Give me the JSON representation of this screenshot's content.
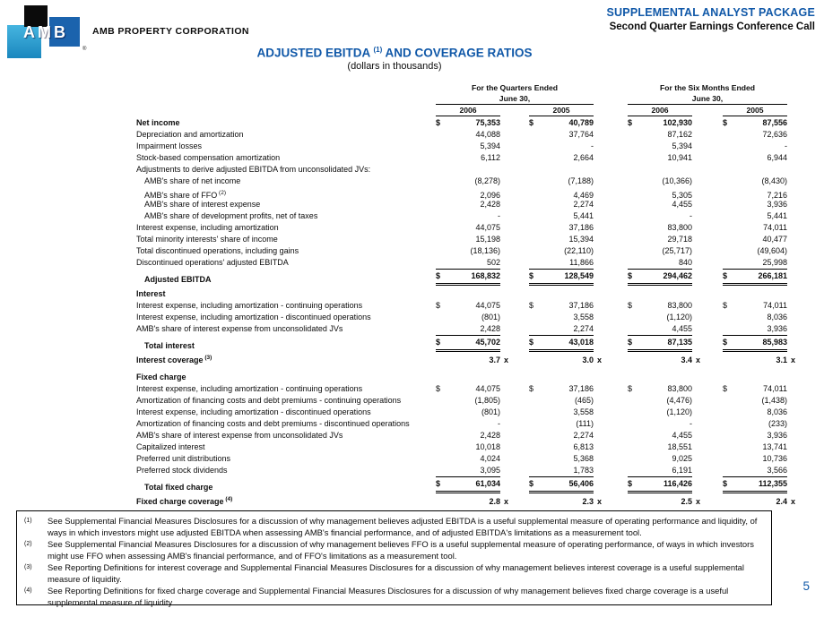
{
  "page": {
    "logo": {
      "text": "AMB",
      "registered": "®",
      "company": "AMB PROPERTY CORPORATION"
    },
    "header_right": {
      "line1": "SUPPLEMENTAL ANALYST PACKAGE",
      "line2": "Second Quarter Earnings Conference Call"
    },
    "title": {
      "pre": "ADJUSTED EBITDA",
      "sup": "(1)",
      "post": "AND COVERAGE RATIOS",
      "subtitle": "(dollars in thousands)"
    },
    "page_number": "5",
    "colors": {
      "accent_blue": "#1058a8",
      "logo_blue": "#1b63ad",
      "logo_cyan": "#2fa7d8",
      "logo_black": "#0b0b0b"
    }
  },
  "table": {
    "col_groups": [
      {
        "title": "For the Quarters Ended",
        "subtitle": "June 30,",
        "years": [
          "2006",
          "2005"
        ]
      },
      {
        "title": "For the Six Months Ended",
        "subtitle": "June 30,",
        "years": [
          "2006",
          "2005"
        ]
      }
    ],
    "sections": [
      {
        "header": "",
        "rows": [
          {
            "label": "Net income",
            "bold": true,
            "dollar": true,
            "values": [
              "75,353",
              "40,789",
              "102,930",
              "87,556"
            ]
          },
          {
            "label": "Depreciation and amortization",
            "values": [
              "44,088",
              "37,764",
              "87,162",
              "72,636"
            ]
          },
          {
            "label": "Impairment losses",
            "values": [
              "5,394",
              "-",
              "5,394",
              "-"
            ]
          },
          {
            "label": "Stock-based compensation amortization",
            "values": [
              "6,112",
              "2,664",
              "10,941",
              "6,944"
            ]
          },
          {
            "label": "Adjustments to derive adjusted EBITDA from unconsolidated JVs:",
            "values": [
              "",
              "",
              "",
              ""
            ]
          },
          {
            "label": "AMB's share of net income",
            "indent": 1,
            "values": [
              "(8,278)",
              "(7,188)",
              "(10,366)",
              "(8,430)"
            ]
          },
          {
            "label": "AMB's share of FFO",
            "sup": "(2)",
            "indent": 1,
            "values": [
              "2,096",
              "4,469",
              "5,305",
              "7,216"
            ]
          },
          {
            "label": "AMB's share of interest expense",
            "indent": 1,
            "values": [
              "2,428",
              "2,274",
              "4,455",
              "3,936"
            ]
          },
          {
            "label": "AMB's share of development profits, net of taxes",
            "indent": 1,
            "values": [
              "-",
              "5,441",
              "-",
              "5,441"
            ]
          },
          {
            "label": "Interest expense, including amortization",
            "values": [
              "44,075",
              "37,186",
              "83,800",
              "74,011"
            ]
          },
          {
            "label": "Total minority interests' share of income",
            "values": [
              "15,198",
              "15,394",
              "29,718",
              "40,477"
            ]
          },
          {
            "label": "Total discontinued operations, including gains",
            "values": [
              "(18,136)",
              "(22,110)",
              "(25,717)",
              "(49,604)"
            ]
          },
          {
            "label": "Discontinued operations' adjusted EBITDA",
            "values": [
              "502",
              "11,866",
              "840",
              "25,998"
            ]
          },
          {
            "label": "Adjusted EBITDA",
            "bold": true,
            "indent": 1,
            "dollar": true,
            "rule": "total",
            "values": [
              "168,832",
              "128,549",
              "294,462",
              "266,181"
            ]
          }
        ]
      },
      {
        "header": "Interest",
        "rows": [
          {
            "label": "Interest expense, including amortization - continuing operations",
            "dollar": true,
            "values": [
              "44,075",
              "37,186",
              "83,800",
              "74,011"
            ]
          },
          {
            "label": "Interest expense, including amortization - discontinued operations",
            "values": [
              "(801)",
              "3,558",
              "(1,120)",
              "8,036"
            ]
          },
          {
            "label": "AMB's share of interest expense from unconsolidated JVs",
            "values": [
              "2,428",
              "2,274",
              "4,455",
              "3,936"
            ]
          },
          {
            "label": "Total interest",
            "bold": true,
            "indent": 1,
            "dollar": true,
            "rule": "total",
            "values": [
              "45,702",
              "43,018",
              "87,135",
              "85,983"
            ]
          },
          {
            "label": "Interest coverage",
            "sup": "(3)",
            "bold": true,
            "suffix": "x",
            "gap": true,
            "values": [
              "3.7",
              "3.0",
              "3.4",
              "3.1"
            ]
          }
        ]
      },
      {
        "header": "Fixed charge",
        "rows": [
          {
            "label": "Interest expense, including amortization - continuing operations",
            "dollar": true,
            "values": [
              "44,075",
              "37,186",
              "83,800",
              "74,011"
            ]
          },
          {
            "label": "Amortization of financing costs and debt premiums - continuing operations",
            "values": [
              "(1,805)",
              "(465)",
              "(4,476)",
              "(1,438)"
            ]
          },
          {
            "label": "Interest expense, including amortization - discontinued operations",
            "values": [
              "(801)",
              "3,558",
              "(1,120)",
              "8,036"
            ]
          },
          {
            "label": "Amortization of financing costs and debt premiums - discontinued operations",
            "values": [
              "-",
              "(111)",
              "-",
              "(233)"
            ]
          },
          {
            "label": "AMB's share of interest expense from unconsolidated JVs",
            "values": [
              "2,428",
              "2,274",
              "4,455",
              "3,936"
            ]
          },
          {
            "label": "Capitalized interest",
            "values": [
              "10,018",
              "6,813",
              "18,551",
              "13,741"
            ]
          },
          {
            "label": "Preferred unit distributions",
            "values": [
              "4,024",
              "5,368",
              "9,025",
              "10,736"
            ]
          },
          {
            "label": "Preferred stock dividends",
            "values": [
              "3,095",
              "1,783",
              "6,191",
              "3,566"
            ]
          },
          {
            "label": "Total fixed charge",
            "bold": true,
            "indent": 1,
            "dollar": true,
            "rule": "total",
            "values": [
              "61,034",
              "56,406",
              "116,426",
              "112,355"
            ]
          },
          {
            "label": "Fixed charge coverage",
            "sup": "(4)",
            "bold": true,
            "suffix": "x",
            "gap": true,
            "values": [
              "2.8",
              "2.3",
              "2.5",
              "2.4"
            ]
          }
        ]
      }
    ]
  },
  "footnotes": [
    {
      "marker": "(1)",
      "text": "See Supplemental Financial Measures Disclosures for a discussion of why management believes adjusted EBITDA is a useful supplemental measure of operating performance and liquidity, of ways in which investors might use adjusted EBITDA when assessing AMB's financial performance, and of adjusted EBITDA's limitations as a measurement tool."
    },
    {
      "marker": "(2)",
      "text": "See Supplemental Financial Measures Disclosures for a discussion of why management believes FFO is a useful supplemental measure of operating performance, of ways in which investors might use FFO when assessing AMB's financial performance, and of FFO's limitations as a measurement tool."
    },
    {
      "marker": "(3)",
      "text": "See Reporting Definitions for interest coverage and Supplemental Financial Measures Disclosures for a discussion of why management believes interest coverage is a useful supplemental measure of liquidity."
    },
    {
      "marker": "(4)",
      "text": "See Reporting Definitions for fixed charge coverage and Supplemental Financial Measures Disclosures for a discussion of why management believes fixed charge coverage is a useful supplemental measure of liquidity."
    }
  ]
}
